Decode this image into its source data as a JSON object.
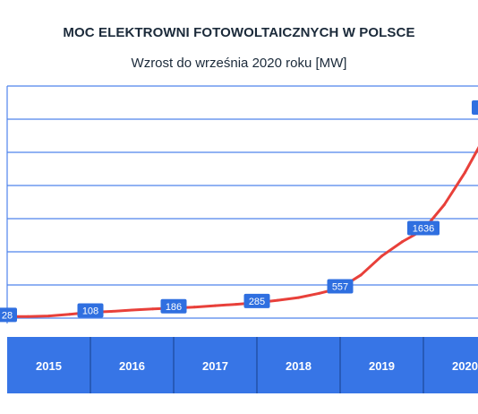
{
  "header": {
    "title": "MOC ELEKTROWNI FOTOWOLTAICZNYCH W POLSCE",
    "subtitle": "Wzrost do września 2020 roku [MW]"
  },
  "colors": {
    "line": "#e8403a",
    "grid": "#4f84ec",
    "label_bg": "#2f6fe0",
    "band": "#3775e6",
    "band_text": "#ffffff",
    "title_text": "#1b2a3a"
  },
  "chart_data": {
    "type": "line",
    "title": "MOC ELEKTROWNI FOTOWOLTAICZNYCH W POLSCE",
    "subtitle": "Wzrost do września 2020 roku [MW]",
    "categories": [
      "2015",
      "2016",
      "2017",
      "2018",
      "2019",
      "2020"
    ],
    "series": [
      {
        "points": [
          [
            "2014-12",
            28
          ],
          [
            "2015-03",
            30
          ],
          [
            "2015-06",
            40
          ],
          [
            "2015-09",
            70
          ],
          [
            "2015-12",
            108
          ],
          [
            "2016-03",
            125
          ],
          [
            "2016-06",
            150
          ],
          [
            "2016-09",
            170
          ],
          [
            "2016-12",
            186
          ],
          [
            "2017-03",
            205
          ],
          [
            "2017-06",
            230
          ],
          [
            "2017-09",
            255
          ],
          [
            "2017-12",
            285
          ],
          [
            "2018-03",
            330
          ],
          [
            "2018-06",
            380
          ],
          [
            "2018-09",
            460
          ],
          [
            "2018-12",
            557
          ],
          [
            "2019-03",
            800
          ],
          [
            "2019-06",
            1150
          ],
          [
            "2019-09",
            1420
          ],
          [
            "2019-12",
            1636
          ],
          [
            "2020-03",
            2100
          ],
          [
            "2020-06",
            2700
          ],
          [
            "2020-09",
            3400
          ]
        ],
        "labels": [
          {
            "x": "2014-12",
            "y": 28,
            "text": "28"
          },
          {
            "x": "2015-12",
            "y": 108,
            "text": "108"
          },
          {
            "x": "2016-12",
            "y": 186,
            "text": "186"
          },
          {
            "x": "2017-12",
            "y": 285,
            "text": "285"
          },
          {
            "x": "2018-12",
            "y": 557,
            "text": "557"
          },
          {
            "x": "2019-12",
            "y": 1636,
            "text": "1636"
          }
        ]
      }
    ],
    "ylim": [
      0,
      4300
    ],
    "grid": true,
    "legend": "none"
  }
}
